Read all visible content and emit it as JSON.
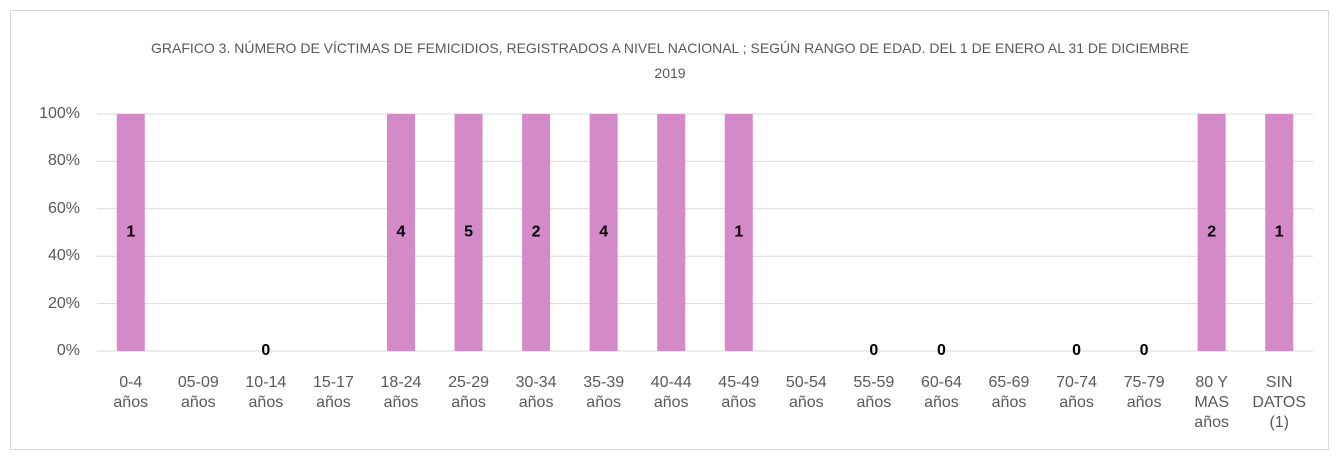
{
  "chart_data": {
    "type": "bar",
    "stacking": "percent",
    "title": "GRAFICO 3. NÚMERO DE VÍCTIMAS DE FEMICIDIOS, REGISTRADOS A NIVEL NACIONAL ; SEGÚN RANGO DE EDAD. DEL 1  DE ENERO AL 31 DE DICIEMBRE  2019",
    "categories": [
      "0-4 años",
      "05-09 años",
      "10-14 años",
      "15-17 años",
      "18-24 años",
      "25-29 años",
      "30-34 años",
      "35-39 años",
      "40-44 años",
      "45-49 años",
      "50-54 años",
      "55-59 años",
      "60-64 años",
      "65-69 años",
      "70-74 años",
      "75-79 años",
      "80 Y MAS años",
      "SIN DATOS (1)"
    ],
    "values": [
      1,
      0,
      0,
      0,
      4,
      5,
      2,
      4,
      1,
      1,
      0,
      0,
      0,
      0,
      0,
      0,
      2,
      1
    ],
    "value_labels": [
      "1",
      null,
      "0",
      null,
      "4",
      "5",
      "2",
      "4",
      null,
      "1",
      null,
      "0",
      "0",
      null,
      "0",
      "0",
      "2",
      "1"
    ],
    "color": "#d48ac8",
    "ylim": [
      0,
      100
    ],
    "yticks": [
      {
        "value": 0,
        "label": "0%"
      },
      {
        "value": 20,
        "label": "20%"
      },
      {
        "value": 40,
        "label": "40%"
      },
      {
        "value": 60,
        "label": "60%"
      },
      {
        "value": 80,
        "label": "80%"
      },
      {
        "value": 100,
        "label": "100%"
      }
    ],
    "grid": true
  }
}
